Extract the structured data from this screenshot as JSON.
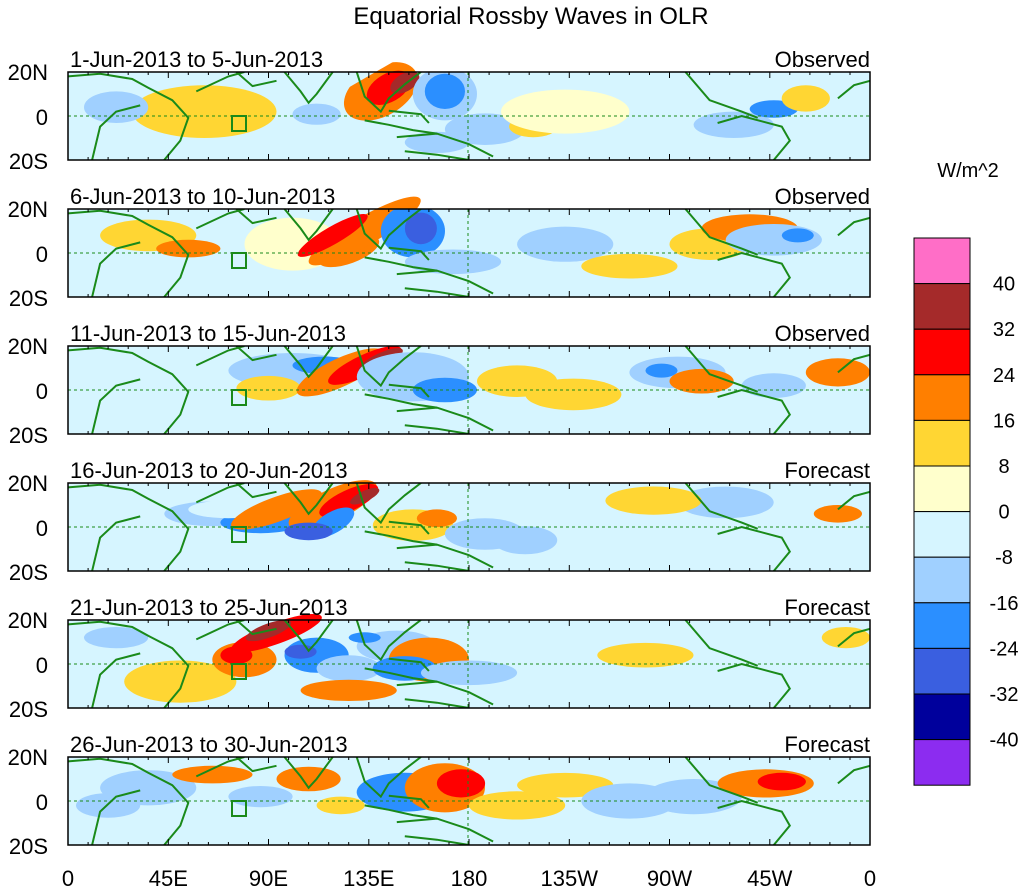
{
  "title": "Equatorial Rossby Waves in OLR",
  "lat_labels": [
    "20N",
    "0",
    "20S"
  ],
  "lon_labels": [
    "0",
    "45E",
    "90E",
    "135E",
    "180",
    "135W",
    "90W",
    "45W",
    "0"
  ],
  "panels": [
    {
      "date_range": "1-Jun-2013 to 5-Jun-2013",
      "status": "Observed"
    },
    {
      "date_range": "6-Jun-2013 to 10-Jun-2013",
      "status": "Observed"
    },
    {
      "date_range": "11-Jun-2013 to 15-Jun-2013",
      "status": "Observed"
    },
    {
      "date_range": "16-Jun-2013 to 20-Jun-2013",
      "status": "Forecast"
    },
    {
      "date_range": "21-Jun-2013 to 25-Jun-2013",
      "status": "Forecast"
    },
    {
      "date_range": "26-Jun-2013 to 30-Jun-2013",
      "status": "Forecast"
    }
  ],
  "colorbar": {
    "units": "W/m^2",
    "labels": [
      "40",
      "32",
      "24",
      "16",
      "8",
      "0",
      "-8",
      "-16",
      "-24",
      "-32",
      "-40"
    ],
    "colors": [
      "#ff6ec7",
      "#a52a2a",
      "#ff0000",
      "#ff7f00",
      "#ffd633",
      "#ffffcc",
      "#d6f5ff",
      "#a0d0ff",
      "#2b8fff",
      "#3a5fe0",
      "#00009c",
      "#8c2cf0"
    ]
  }
}
